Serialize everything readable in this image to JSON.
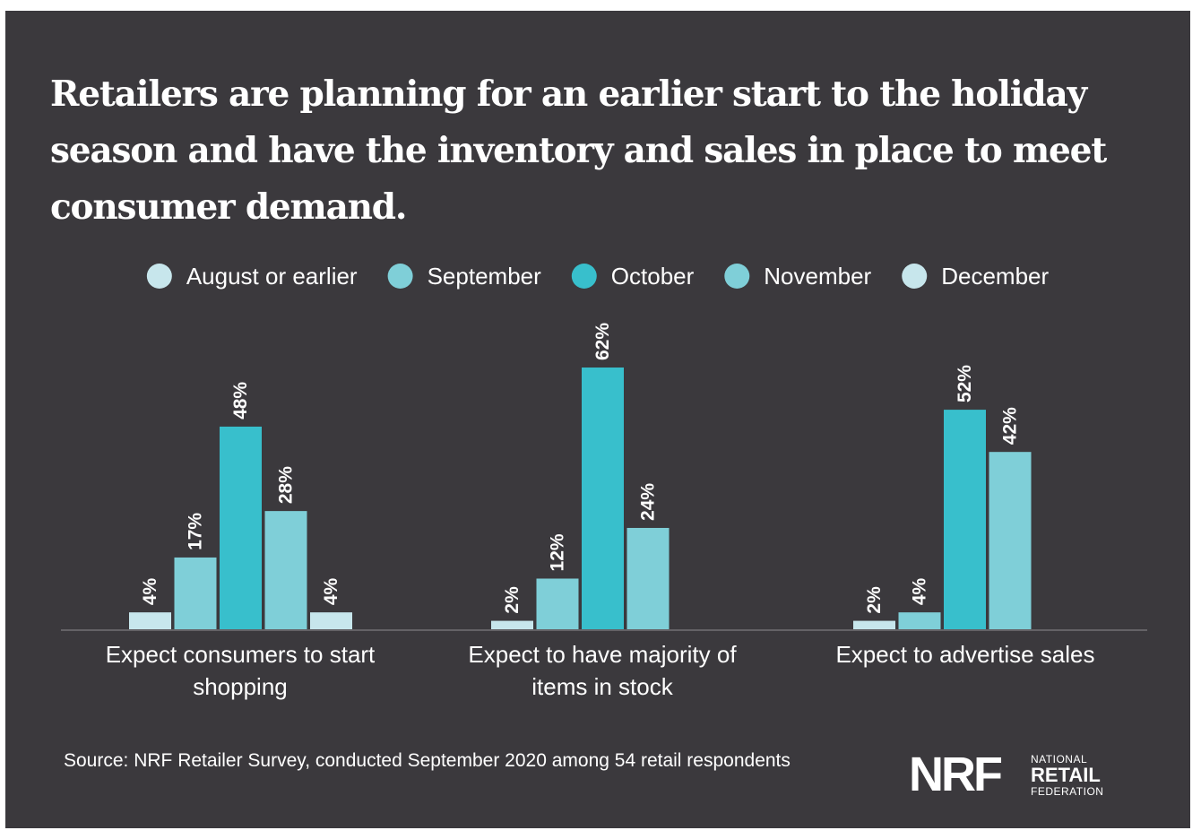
{
  "title": "Retailers are planning for an earlier start to the holiday season and have the inventory and sales in place to meet consumer demand.",
  "chart_data": {
    "type": "bar",
    "categories": [
      [
        "Expect consumers to start",
        "shopping"
      ],
      [
        "Expect to have majority of",
        "items in stock"
      ],
      [
        "Expect to advertise sales"
      ]
    ],
    "series": [
      {
        "name": "August or earlier",
        "color": "#c7e6ec",
        "values": [
          4,
          2,
          2
        ],
        "labels": [
          "4%",
          "2%",
          "2%"
        ]
      },
      {
        "name": "September",
        "color": "#7fcfd8",
        "values": [
          17,
          12,
          4
        ],
        "labels": [
          "17%",
          "12%",
          "4%"
        ]
      },
      {
        "name": "October",
        "color": "#38bfcc",
        "values": [
          48,
          62,
          52
        ],
        "labels": [
          "48%",
          "62%",
          "52%"
        ]
      },
      {
        "name": "November",
        "color": "#7fcfd8",
        "values": [
          28,
          24,
          42
        ],
        "labels": [
          "28%",
          "24%",
          "42%"
        ]
      },
      {
        "name": "December",
        "color": "#c7e6ec",
        "values": [
          4,
          null,
          null
        ],
        "labels": [
          "4%",
          "",
          ""
        ]
      }
    ],
    "legend_position": "top-center",
    "grid": false,
    "ylim": [
      0,
      62
    ]
  },
  "source": "Source: NRF Retailer Survey, conducted September 2020 among 54 retail respondents",
  "logo": {
    "mark": "NRF",
    "line1": "NATIONAL",
    "line2": "RETAIL",
    "line3": "FEDERATION"
  }
}
